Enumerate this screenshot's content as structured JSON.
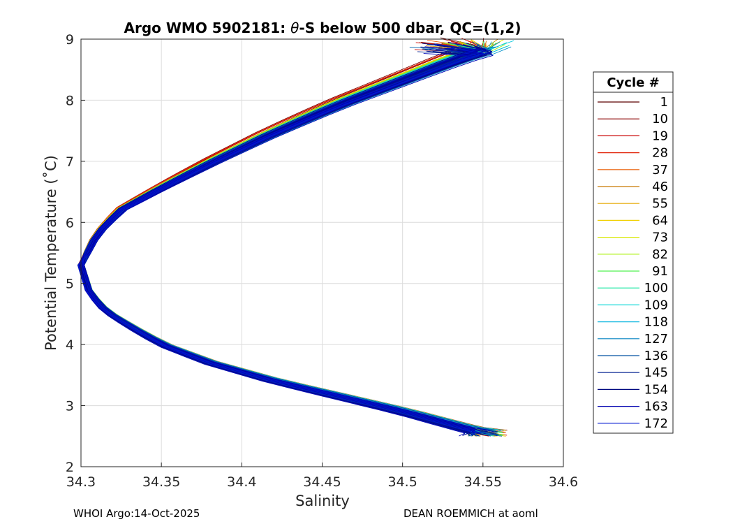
{
  "chart_data": {
    "type": "line",
    "title_main": "Argo WMO 5902181: ",
    "title_theta": "θ",
    "title_rest": "-S below 500 dbar,  QC=(1,2)",
    "xlabel": "Salinity",
    "ylabel": "Potential Temperature (˚C)",
    "xlim": [
      34.3,
      34.6
    ],
    "ylim": [
      2,
      9
    ],
    "x_ticks": [
      "34.3",
      "34.35",
      "34.4",
      "34.45",
      "34.5",
      "34.55",
      "34.6"
    ],
    "y_ticks": [
      "2",
      "3",
      "4",
      "5",
      "6",
      "7",
      "8",
      "9"
    ],
    "grid": true,
    "legend_position": "right",
    "legend_title": "Cycle #",
    "cycles": [
      "1",
      "10",
      "19",
      "28",
      "37",
      "46",
      "55",
      "64",
      "73",
      "82",
      "91",
      "100",
      "109",
      "118",
      "127",
      "136",
      "145",
      "154",
      "163",
      "172"
    ],
    "cycle_colors": [
      "#5c0000",
      "#8a0000",
      "#c80000",
      "#e01c00",
      "#e85a00",
      "#c87800",
      "#e6a800",
      "#f0d000",
      "#d8e800",
      "#a8f000",
      "#50f050",
      "#18e6a0",
      "#10d8d8",
      "#10b8e0",
      "#0080c0",
      "#0050a0",
      "#002090",
      "#000880",
      "#0000b0",
      "#0018d0"
    ],
    "profile_shape": {
      "upper_limb": [
        [
          34.3,
          5.3
        ],
        [
          34.31,
          5.8
        ],
        [
          34.325,
          6.2
        ],
        [
          34.35,
          6.55
        ],
        [
          34.38,
          6.95
        ],
        [
          34.42,
          7.45
        ],
        [
          34.46,
          7.9
        ],
        [
          34.5,
          8.3
        ],
        [
          34.535,
          8.65
        ],
        [
          34.56,
          8.85
        ]
      ],
      "lower_limb": [
        [
          34.3,
          5.3
        ],
        [
          34.305,
          4.85
        ],
        [
          34.315,
          4.55
        ],
        [
          34.33,
          4.3
        ],
        [
          34.35,
          4.0
        ],
        [
          34.38,
          3.7
        ],
        [
          34.42,
          3.4
        ],
        [
          34.46,
          3.15
        ],
        [
          34.5,
          2.9
        ],
        [
          34.535,
          2.65
        ],
        [
          34.55,
          2.55
        ]
      ]
    }
  },
  "footer": {
    "left": "WHOI Argo:14-Oct-2025",
    "right": "DEAN ROEMMICH at aoml"
  }
}
